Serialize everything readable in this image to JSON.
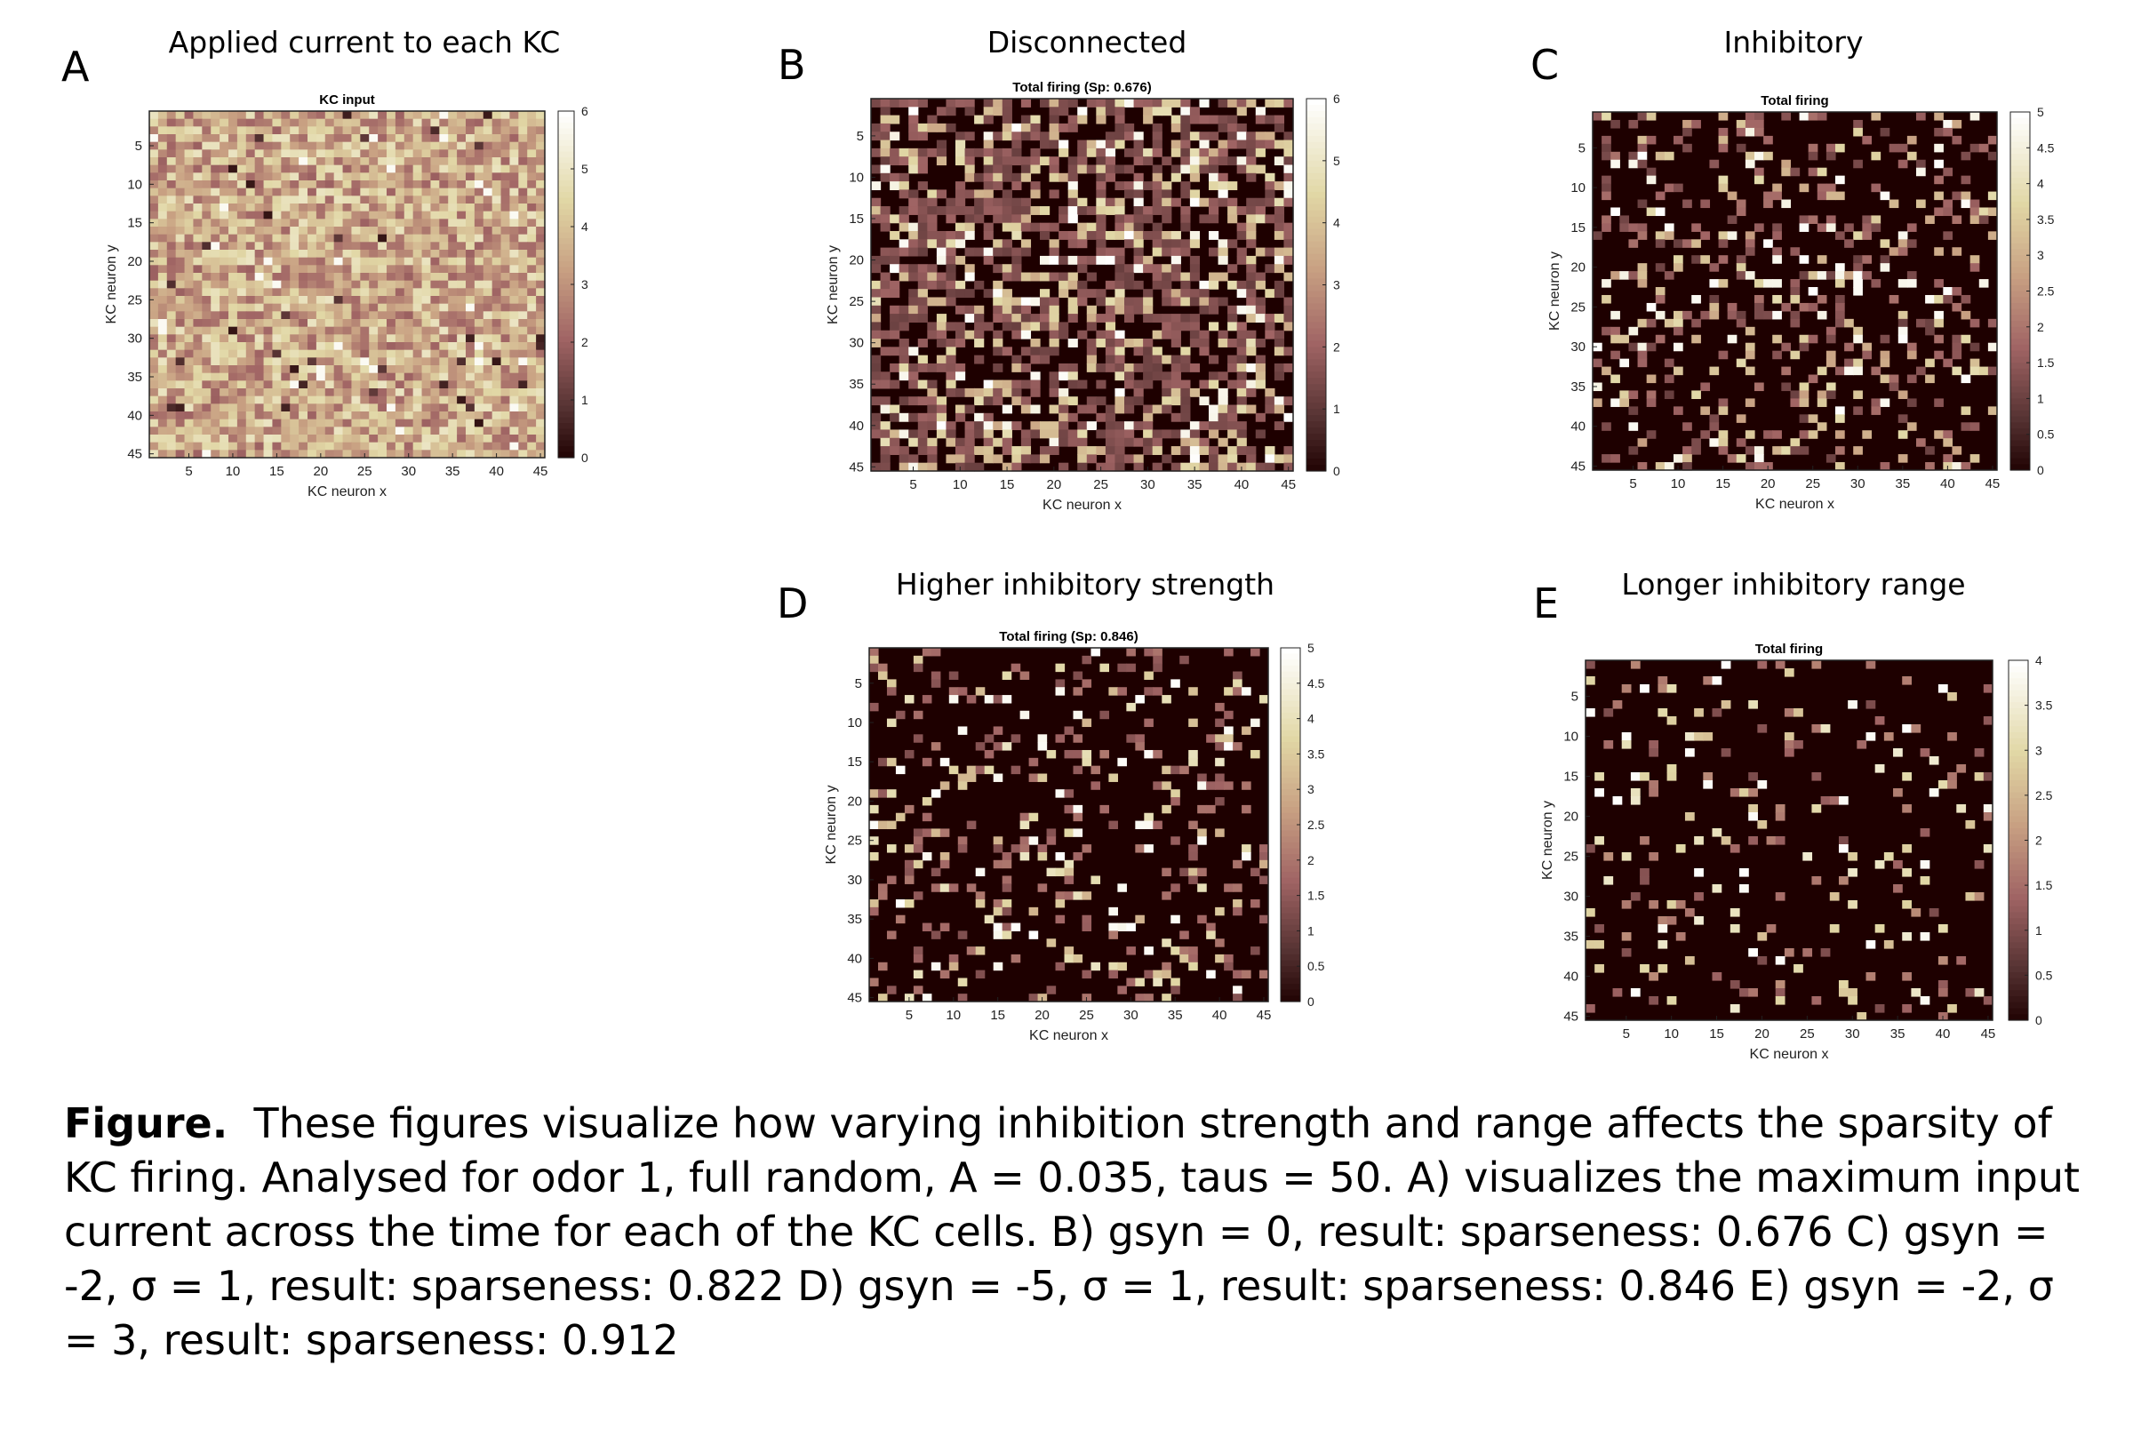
{
  "chart_data": [
    {
      "type": "heatmap",
      "panel_label": "A",
      "panel_title": "Applied current to each KC",
      "title": "KC input",
      "xlabel": "KC neuron x",
      "ylabel": "KC neuron y",
      "x_ticks": [
        "5",
        "10",
        "15",
        "20",
        "25",
        "30",
        "35",
        "40",
        "45"
      ],
      "y_ticks": [
        "5",
        "10",
        "15",
        "20",
        "25",
        "30",
        "35",
        "40",
        "45"
      ],
      "grid_size": [
        45,
        45
      ],
      "colorbar_ticks": [
        "0",
        "1",
        "2",
        "3",
        "4",
        "5",
        "6"
      ],
      "clim": [
        0,
        6
      ],
      "colormap": "pink",
      "distribution": "dense values mostly between 2 and 5, rare dark or white cells"
    },
    {
      "type": "heatmap",
      "panel_label": "B",
      "panel_title": "Disconnected",
      "title": "Total firing (Sp: 0.676)",
      "xlabel": "KC neuron x",
      "ylabel": "KC neuron y",
      "x_ticks": [
        "5",
        "10",
        "15",
        "20",
        "25",
        "30",
        "35",
        "40",
        "45"
      ],
      "y_ticks": [
        "5",
        "10",
        "15",
        "20",
        "25",
        "30",
        "35",
        "40",
        "45"
      ],
      "grid_size": [
        45,
        45
      ],
      "colorbar_ticks": [
        "0",
        "1",
        "2",
        "3",
        "4",
        "5",
        "6"
      ],
      "clim": [
        0,
        6
      ],
      "colormap": "pink",
      "sparseness": 0.676
    },
    {
      "type": "heatmap",
      "panel_label": "C",
      "panel_title": "Inhibitory",
      "title": "Total firing",
      "xlabel": "KC neuron x",
      "ylabel": "KC neuron y",
      "x_ticks": [
        "5",
        "10",
        "15",
        "20",
        "25",
        "30",
        "35",
        "40",
        "45"
      ],
      "y_ticks": [
        "5",
        "10",
        "15",
        "20",
        "25",
        "30",
        "35",
        "40",
        "45"
      ],
      "grid_size": [
        45,
        45
      ],
      "colorbar_ticks": [
        "0",
        "0.5",
        "1",
        "1.5",
        "2",
        "2.5",
        "3",
        "3.5",
        "4",
        "4.5",
        "5"
      ],
      "clim": [
        0,
        5
      ],
      "colormap": "pink",
      "sparseness": 0.822
    },
    {
      "type": "heatmap",
      "panel_label": "D",
      "panel_title": "Higher inhibitory strength",
      "title": "Total firing (Sp: 0.846)",
      "xlabel": "KC neuron x",
      "ylabel": "KC neuron y",
      "x_ticks": [
        "5",
        "10",
        "15",
        "20",
        "25",
        "30",
        "35",
        "40",
        "45"
      ],
      "y_ticks": [
        "5",
        "10",
        "15",
        "20",
        "25",
        "30",
        "35",
        "40",
        "45"
      ],
      "grid_size": [
        45,
        45
      ],
      "colorbar_ticks": [
        "0",
        "0.5",
        "1",
        "1.5",
        "2",
        "2.5",
        "3",
        "3.5",
        "4",
        "4.5",
        "5"
      ],
      "clim": [
        0,
        5
      ],
      "colormap": "pink",
      "sparseness": 0.846
    },
    {
      "type": "heatmap",
      "panel_label": "E",
      "panel_title": "Longer inhibitory range",
      "title": "Total firing",
      "xlabel": "KC neuron x",
      "ylabel": "KC neuron y",
      "x_ticks": [
        "5",
        "10",
        "15",
        "20",
        "25",
        "30",
        "35",
        "40",
        "45"
      ],
      "y_ticks": [
        "5",
        "10",
        "15",
        "20",
        "25",
        "30",
        "35",
        "40",
        "45"
      ],
      "grid_size": [
        45,
        45
      ],
      "colorbar_ticks": [
        "0",
        "0.5",
        "1",
        "1.5",
        "2",
        "2.5",
        "3",
        "3.5",
        "4"
      ],
      "clim": [
        0,
        4
      ],
      "colormap": "pink",
      "sparseness": 0.912
    }
  ],
  "caption": {
    "label": "Figure.",
    "text": "These figures visualize how varying inhibition strength and range affects the sparsity of KC firing. Analysed for odor 1, full random, A = 0.035, taus = 50. A) visualizes the maximum input current across the time for each of the KC cells. B) gsyn = 0, result: sparseness: 0.676 C) gsyn = -2, σ = 1, result: sparseness: 0.822 D) gsyn = -5, σ = 1, result: sparseness: 0.846 E) gsyn = -2, σ = 3, result: sparseness: 0.912"
  }
}
